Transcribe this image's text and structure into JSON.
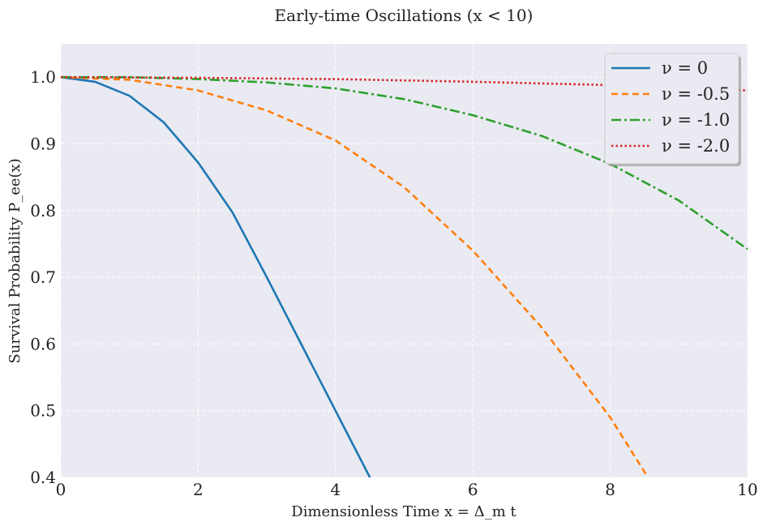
{
  "chart_data": {
    "type": "line",
    "title": "Early-time Oscillations (x < 10)",
    "xlabel": "Dimensionless Time x = Δ_m t",
    "ylabel": "Survival Probability P_ee(x)",
    "xlim": [
      0,
      10
    ],
    "ylim": [
      0.4,
      1.05
    ],
    "xticks": [
      "0",
      "2",
      "4",
      "6",
      "8",
      "10"
    ],
    "yticks": [
      "0.4",
      "0.5",
      "0.6",
      "0.7",
      "0.8",
      "0.9",
      "1.0"
    ],
    "grid": true,
    "legend_position": "top-right",
    "series": [
      {
        "name": "ν = 0",
        "color": "#1f77b4",
        "dash": "solid",
        "x": [
          0,
          0.5,
          1,
          1.5,
          2,
          2.5,
          3,
          3.5,
          4,
          4.5
        ],
        "y": [
          1.0,
          0.993,
          0.972,
          0.932,
          0.872,
          0.797,
          0.7,
          0.6,
          0.5,
          0.4
        ]
      },
      {
        "name": "ν = -0.5",
        "color": "#ff7f0e",
        "dash": "dashed",
        "x": [
          0,
          1,
          2,
          3,
          4,
          5,
          6,
          7,
          8,
          8.55
        ],
        "y": [
          1.0,
          0.996,
          0.98,
          0.95,
          0.905,
          0.835,
          0.74,
          0.625,
          0.49,
          0.4
        ]
      },
      {
        "name": "ν = -1.0",
        "color": "#2ca02c",
        "dash": "dashdot",
        "x": [
          0,
          1,
          2,
          3,
          4,
          5,
          6,
          7,
          8,
          9,
          10
        ],
        "y": [
          1.0,
          1.0,
          0.997,
          0.992,
          0.983,
          0.967,
          0.943,
          0.912,
          0.87,
          0.815,
          0.742
        ]
      },
      {
        "name": "ν = -2.0",
        "color": "#d62728",
        "dash": "dotted",
        "x": [
          0,
          2,
          4,
          6,
          8,
          10
        ],
        "y": [
          1.0,
          0.999,
          0.997,
          0.993,
          0.988,
          0.98
        ]
      }
    ]
  }
}
